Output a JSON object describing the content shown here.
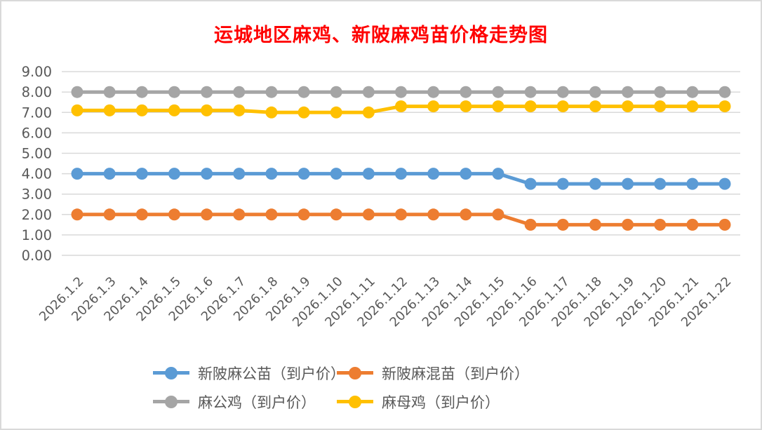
{
  "title": {
    "text": "运城地区麻鸡、新陂麻鸡苗价格走势图",
    "color": "#FF0000"
  },
  "chart_data": {
    "type": "line",
    "title": "运城地区麻鸡、新陂麻鸡苗价格走势图",
    "categories": [
      "2026.1.2",
      "2026.1.3",
      "2026.1.4",
      "2026.1.5",
      "2026.1.6",
      "2026.1.7",
      "2026.1.8",
      "2026.1.9",
      "2026.1.10",
      "2026.1.11",
      "2026.1.12",
      "2026.1.13",
      "2026.1.14",
      "2026.1.15",
      "2026.1.16",
      "2026.1.17",
      "2026.1.18",
      "2026.1.19",
      "2026.1.20",
      "2026.1.21",
      "2026.1.22"
    ],
    "series": [
      {
        "name": "新陂麻公苗（到户价）",
        "key": "xinpo-ma-gong-miao",
        "color": "#5B9BD5",
        "values": [
          4.0,
          4.0,
          4.0,
          4.0,
          4.0,
          4.0,
          4.0,
          4.0,
          4.0,
          4.0,
          4.0,
          4.0,
          4.0,
          4.0,
          3.5,
          3.5,
          3.5,
          3.5,
          3.5,
          3.5,
          3.5
        ]
      },
      {
        "name": "新陂麻混苗（到户价）",
        "key": "xinpo-ma-hun-miao",
        "color": "#ED7D31",
        "values": [
          2.0,
          2.0,
          2.0,
          2.0,
          2.0,
          2.0,
          2.0,
          2.0,
          2.0,
          2.0,
          2.0,
          2.0,
          2.0,
          2.0,
          1.5,
          1.5,
          1.5,
          1.5,
          1.5,
          1.5,
          1.5
        ]
      },
      {
        "name": "麻公鸡（到户价）",
        "key": "ma-gong-ji",
        "color": "#A5A5A5",
        "values": [
          8.0,
          8.0,
          8.0,
          8.0,
          8.0,
          8.0,
          8.0,
          8.0,
          8.0,
          8.0,
          8.0,
          8.0,
          8.0,
          8.0,
          8.0,
          8.0,
          8.0,
          8.0,
          8.0,
          8.0,
          8.0
        ]
      },
      {
        "name": "麻母鸡（到户价）",
        "key": "ma-mu-ji",
        "color": "#FFC000",
        "values": [
          7.1,
          7.1,
          7.1,
          7.1,
          7.1,
          7.1,
          7.0,
          7.0,
          7.0,
          7.0,
          7.3,
          7.3,
          7.3,
          7.3,
          7.3,
          7.3,
          7.3,
          7.3,
          7.3,
          7.3,
          7.3
        ]
      }
    ],
    "xlabel": "",
    "ylabel": "",
    "ylim": [
      0,
      9
    ],
    "ytick_step": 1,
    "ytick_decimals": 2,
    "ytick_labels": [
      "0.00",
      "1.00",
      "2.00",
      "3.00",
      "4.00",
      "5.00",
      "6.00",
      "7.00",
      "8.00",
      "9.00"
    ],
    "grid": true,
    "legend_position": "bottom",
    "legend_rows": [
      [
        0,
        1
      ],
      [
        2,
        3
      ]
    ]
  },
  "style_colors": {
    "grid": "#D9D9D9",
    "border": "#D9D9D9",
    "axis_text": "#595959",
    "background": "#FFFFFF"
  }
}
